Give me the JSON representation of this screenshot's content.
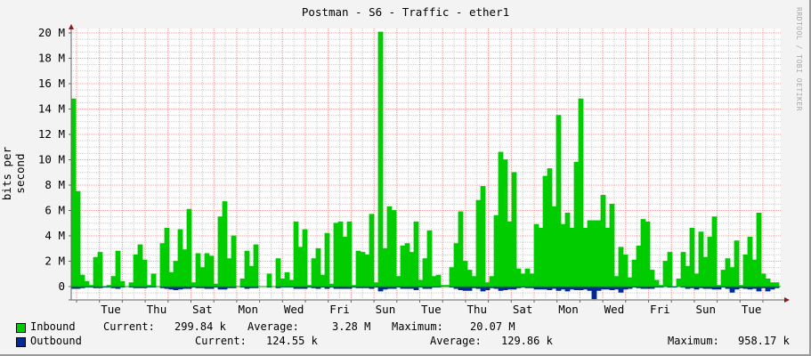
{
  "chart_data": {
    "type": "area",
    "title": "Postman - S6 - Traffic - ether1",
    "ylabel": "bits per second",
    "watermark": "RRDTOOL / TOBI OETIKER",
    "ylim": [
      -1,
      20
    ],
    "y_ticks": [
      {
        "value": 0,
        "label": "0"
      },
      {
        "value": 2,
        "label": "2 M"
      },
      {
        "value": 4,
        "label": "4 M"
      },
      {
        "value": 6,
        "label": "6 M"
      },
      {
        "value": 8,
        "label": "8 M"
      },
      {
        "value": 10,
        "label": "10 M"
      },
      {
        "value": 12,
        "label": "12 M"
      },
      {
        "value": 14,
        "label": "14 M"
      },
      {
        "value": 16,
        "label": "16 M"
      },
      {
        "value": 18,
        "label": "18 M"
      },
      {
        "value": 20,
        "label": "20 M"
      }
    ],
    "y_unit": "M (bits per second)",
    "x_tick_labels": [
      "Tue",
      "Thu",
      "Sat",
      "Mon",
      "Wed",
      "Fri",
      "Sun",
      "Tue",
      "Thu",
      "Sat",
      "Mon",
      "Wed",
      "Fri",
      "Sun",
      "Tue"
    ],
    "grid": true,
    "colors": {
      "inbound": "#00cc00",
      "outbound": "#002a97",
      "major_grid": "#f0a0a0",
      "minor_grid": "#cccccc",
      "axis": "#666666",
      "arrow": "#8b1a1a"
    },
    "series": [
      {
        "name": "Inbound",
        "color": "#00cc00",
        "direction": "up",
        "values": [
          14.8,
          7.5,
          0.9,
          0.4,
          0.1,
          2.3,
          2.7,
          0,
          0.1,
          0.8,
          2.8,
          0.4,
          0,
          0.3,
          2.5,
          3.3,
          2.1,
          0.1,
          1.0,
          0,
          3.4,
          4.6,
          1.1,
          2.0,
          4.5,
          2.9,
          6.1,
          0.3,
          2.6,
          1.5,
          2.6,
          2.4,
          0.2,
          5.5,
          6.7,
          2.2,
          4.0,
          0,
          0.6,
          2.8,
          1.6,
          3.3,
          0,
          0,
          1.0,
          0,
          2.2,
          0.6,
          1.1,
          0.5,
          5.1,
          3.1,
          4.5,
          0.1,
          2.2,
          3.0,
          0.9,
          4.2,
          0.2,
          5.0,
          5.1,
          3.9,
          5.1,
          0.1,
          2.8,
          2.7,
          2.5,
          5.7,
          0.3,
          20.07,
          3.0,
          6.3,
          6.0,
          0.8,
          3.2,
          3.4,
          2.7,
          5.1,
          0.5,
          2.2,
          4.4,
          0.8,
          0.9,
          0.1,
          0.1,
          1.5,
          3.4,
          5.9,
          2.0,
          1.3,
          0.8,
          6.8,
          7.9,
          0.3,
          0.8,
          5.6,
          10.6,
          10.0,
          5.1,
          9.0,
          1.4,
          1.0,
          1.4,
          1.0,
          4.9,
          4.6,
          8.7,
          9.3,
          6.3,
          13.5,
          4.9,
          5.8,
          4.6,
          9.8,
          14.8,
          4.6,
          5.2,
          5.2,
          5.2,
          7.2,
          4.6,
          6.5,
          0.8,
          3.1,
          2.5,
          0.7,
          2.1,
          3.2,
          5.3,
          5.1,
          1.3,
          0.5,
          0.1,
          2.0,
          2.7,
          0,
          0.6,
          2.7,
          1.6,
          4.6,
          1.0,
          4.3,
          2.3,
          3.9,
          5.5,
          0.1,
          1.3,
          2.2,
          1.5,
          3.6,
          0.1,
          2.5,
          3.9,
          2.1,
          5.8,
          1.0,
          0.6,
          0.3,
          0.3
        ],
        "legend": {
          "current_label": "Current:",
          "current": "299.84 k",
          "average_label": "Average:",
          "average": "3.28 M",
          "maximum_label": "Maximum:",
          "maximum": "20.07 M"
        }
      },
      {
        "name": "Outbound",
        "color": "#002a97",
        "direction": "down",
        "values": [
          0.15,
          0.15,
          0.1,
          0.05,
          0.05,
          0.1,
          0.1,
          0.05,
          0.05,
          0.1,
          0.15,
          0.05,
          0,
          0.05,
          0.1,
          0.1,
          0.1,
          0.05,
          0.05,
          0,
          0.1,
          0.15,
          0.2,
          0.25,
          0.2,
          0.15,
          0.15,
          0.05,
          0.1,
          0.1,
          0.15,
          0.15,
          0.05,
          0.2,
          0.2,
          0.1,
          0.1,
          0,
          0.05,
          0.15,
          0.1,
          0.1,
          0,
          0,
          0.05,
          0,
          0.1,
          0.05,
          0.05,
          0.05,
          0.15,
          0.15,
          0.15,
          0.05,
          0.1,
          0.15,
          0.05,
          0.15,
          0.05,
          0.15,
          0.15,
          0.15,
          0.15,
          0.05,
          0.1,
          0.1,
          0.1,
          0.15,
          0.05,
          0.35,
          0.2,
          0.15,
          0.15,
          0.05,
          0.15,
          0.15,
          0.15,
          0.25,
          0.05,
          0.15,
          0.15,
          0.05,
          0.05,
          0,
          0,
          0.05,
          0.15,
          0.25,
          0.3,
          0.3,
          0.1,
          0.15,
          0.35,
          0.25,
          0.1,
          0.15,
          0.3,
          0.25,
          0.2,
          0.2,
          0.1,
          0.05,
          0.1,
          0.1,
          0.2,
          0.2,
          0.2,
          0.25,
          0.15,
          0.3,
          0.2,
          0.35,
          0.2,
          0.25,
          0.25,
          0.2,
          0.3,
          0.958,
          0.3,
          0.2,
          0.2,
          0.25,
          0.2,
          0.45,
          0.2,
          0.15,
          0.05,
          0.1,
          0.15,
          0.15,
          0.15,
          0.05,
          0.05,
          0,
          0.05,
          0.05,
          0,
          0.05,
          0.15,
          0.1,
          0.2,
          0.1,
          0.15,
          0.15,
          0.2,
          0.2,
          0.05,
          0.15,
          0.45,
          0.2,
          0.1,
          0.15,
          0.2,
          0.15,
          0.35,
          0.1,
          0.35,
          0.2,
          0.1
        ],
        "legend": {
          "current_label": "Current:",
          "current": "124.55 k",
          "average_label": "Average:",
          "average": "129.86 k",
          "maximum_label": "Maximum:",
          "maximum": "958.17 k"
        }
      }
    ]
  }
}
